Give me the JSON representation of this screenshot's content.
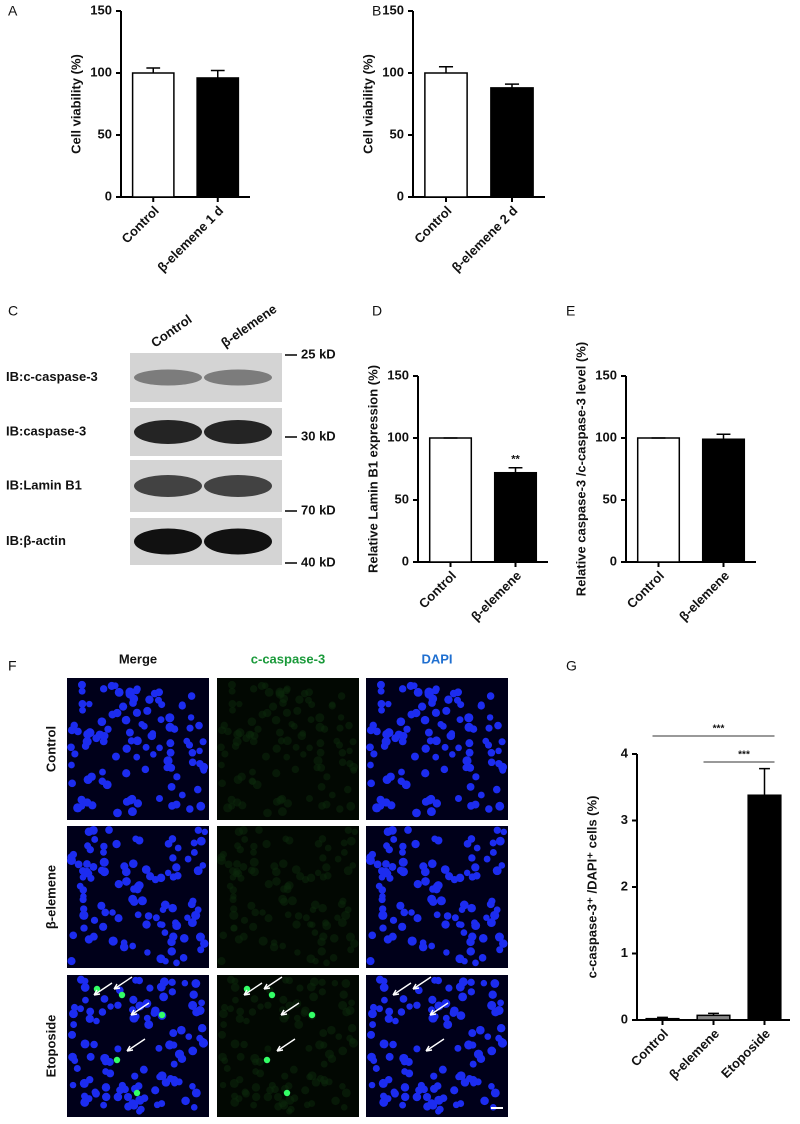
{
  "chart_data": [
    {
      "type": "bar",
      "panel": "A",
      "ylabel": "Cell viability (%)",
      "categories": [
        "Control",
        "β-elemene 1 d"
      ],
      "values": [
        100,
        96
      ],
      "errors": [
        4,
        6
      ],
      "colors": [
        "#ffffff",
        "#000000"
      ],
      "ylim": [
        0,
        150
      ],
      "yticks": [
        0,
        50,
        100,
        150
      ]
    },
    {
      "type": "bar",
      "panel": "B",
      "ylabel": "Cell viability (%)",
      "categories": [
        "Control",
        "β-elemene 2 d"
      ],
      "values": [
        100,
        88
      ],
      "errors": [
        5,
        3
      ],
      "colors": [
        "#ffffff",
        "#000000"
      ],
      "ylim": [
        0,
        150
      ],
      "yticks": [
        0,
        50,
        100,
        150
      ]
    },
    {
      "type": "bar",
      "panel": "D",
      "ylabel": "Relative Lamin B1 expression (%)",
      "categories": [
        "Control",
        "β-elemene"
      ],
      "values": [
        100,
        72
      ],
      "errors": [
        0,
        4
      ],
      "colors": [
        "#ffffff",
        "#000000"
      ],
      "ylim": [
        0,
        150
      ],
      "yticks": [
        0,
        50,
        100,
        150
      ],
      "annotations": [
        "**"
      ]
    },
    {
      "type": "bar",
      "panel": "E",
      "ylabel": "Relative caspase-3 /c-caspase-3 level (%)",
      "categories": [
        "Control",
        "β-elemene"
      ],
      "values": [
        100,
        99
      ],
      "errors": [
        0,
        4
      ],
      "colors": [
        "#ffffff",
        "#000000"
      ],
      "ylim": [
        0,
        150
      ],
      "yticks": [
        0,
        50,
        100,
        150
      ]
    },
    {
      "type": "bar",
      "panel": "G",
      "ylabel": "c-caspase-3⁺ /DAPI⁺ cells (%)",
      "categories": [
        "Control",
        "β-elemene",
        "Etoposide"
      ],
      "values": [
        0.02,
        0.07,
        3.38
      ],
      "errors": [
        0.02,
        0.03,
        0.4
      ],
      "colors": [
        "#ffffff",
        "#888888",
        "#000000"
      ],
      "ylim": [
        0,
        4
      ],
      "yticks": [
        0,
        1,
        2,
        3,
        4
      ],
      "annotations": [
        "***",
        "***"
      ]
    }
  ],
  "blot": {
    "panel": "C",
    "lanes": [
      "Control",
      "β-elemene"
    ],
    "rows": [
      {
        "label": "IB:c-caspase-3",
        "marker": "25 kD"
      },
      {
        "label": "IB:caspase-3",
        "marker": "30 kD"
      },
      {
        "label": "IB:Lamin B1",
        "marker": "70 kD"
      },
      {
        "label": "IB:β-actin",
        "marker": "40 kD"
      }
    ]
  },
  "microscopy": {
    "panel": "F",
    "columns": [
      "Merge",
      "c-caspase-3",
      "DAPI"
    ],
    "rows": [
      "Control",
      "β-elemene",
      "Etoposide"
    ]
  }
}
